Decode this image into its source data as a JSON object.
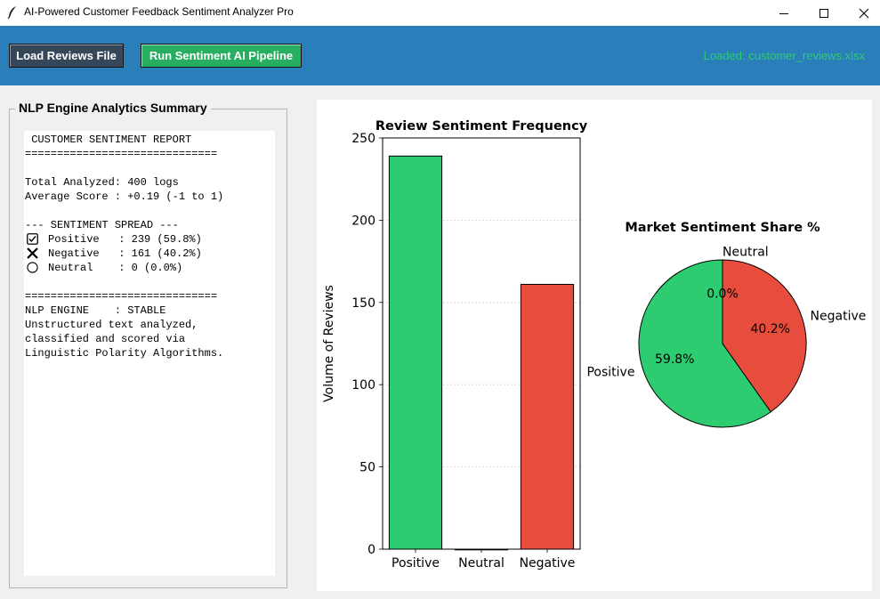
{
  "window": {
    "title": "AI-Powered Customer Feedback Sentiment Analyzer Pro"
  },
  "toolbar": {
    "load_label": "Load Reviews File",
    "run_label": "Run Sentiment AI Pipeline",
    "status_text": "Loaded: customer_reviews.xlsx",
    "colors": {
      "bar_bg": "#2a7fba",
      "load_btn": "#36475a",
      "run_btn": "#27ae60",
      "status": "#2ecc71"
    }
  },
  "summary": {
    "title": "NLP Engine Analytics Summary",
    "lines": [
      " CUSTOMER SENTIMENT REPORT",
      "==============================",
      "",
      "Total Analyzed: 400 logs",
      "Average Score : +0.19 (-1 to 1)",
      "",
      "--- SENTIMENT SPREAD ---",
      "Positive   : 239 (59.8%)",
      "Negative   : 161 (40.2%)",
      "Neutral    : 0 (0.0%)",
      "",
      "==============================",
      "NLP ENGINE    : STABLE",
      "Unstructured text analyzed,",
      "classified and scored via",
      "Linguistic Polarity Algorithms."
    ],
    "line_icons": {
      "7": "checkbox-icon",
      "8": "cross-icon",
      "9": "circle-icon"
    }
  },
  "chart_data": [
    {
      "type": "bar",
      "title": "Review Sentiment Frequency",
      "xlabel": "",
      "ylabel": "Volume of Reviews",
      "categories": [
        "Positive",
        "Neutral",
        "Negative"
      ],
      "values": [
        239,
        0,
        161
      ],
      "colors": [
        "#2ecc71",
        "#95a5a6",
        "#e74c3c"
      ],
      "ylim": [
        0,
        250
      ],
      "yticks": [
        0,
        50,
        100,
        150,
        200,
        250
      ],
      "grid": "y-dashed"
    },
    {
      "type": "pie",
      "title": "Market Sentiment Share %",
      "labels": [
        "Positive",
        "Negative",
        "Neutral"
      ],
      "values": [
        59.8,
        40.2,
        0.0
      ],
      "pct_labels": [
        "59.8%",
        "40.2%",
        "0.0%"
      ],
      "colors": [
        "#2ecc71",
        "#e74c3c",
        "#95a5a6"
      ]
    }
  ]
}
